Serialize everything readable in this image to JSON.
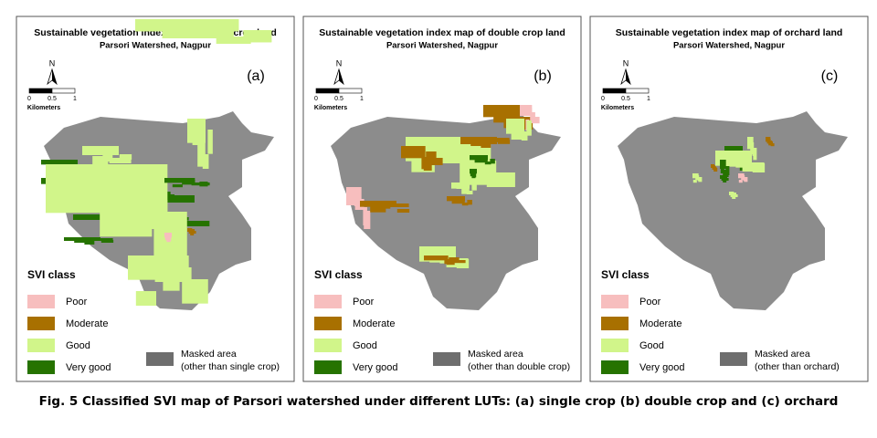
{
  "panels": [
    {
      "title": "Sustainable vegetation index map of single crop land",
      "subtitle": "Parsori Watershed, Nagpur",
      "label": "(a)",
      "masked": [
        "Masked area",
        "(other than single crop)"
      ]
    },
    {
      "title": "Sustainable vegetation index map of double crop land",
      "subtitle": "Parsori Watershed, Nagpur",
      "label": "(b)",
      "masked": [
        "Masked area",
        "(other than double crop)"
      ]
    },
    {
      "title": "Sustainable vegetation index map of orchard land",
      "subtitle": "Parsori Watershed, Nagpur",
      "label": "(c)",
      "masked": [
        "Masked area",
        "(other than orchard)"
      ]
    }
  ],
  "north": "N",
  "scale": [
    "0",
    "0.5",
    "1"
  ],
  "scale_unit": "Kilometers",
  "legend_title": "SVI class",
  "legend": [
    {
      "name": "Poor",
      "color": "#f7bebe"
    },
    {
      "name": "Moderate",
      "color": "#a87000"
    },
    {
      "name": "Good",
      "color": "#d1f58a"
    },
    {
      "name": "Very good",
      "color": "#267300"
    }
  ],
  "masked_color": "#6e6e6e",
  "caption": "Fig. 5 Classified SVI map of Parsori watershed under different LUTs: (a) single crop (b) double crop and (c) orchard"
}
